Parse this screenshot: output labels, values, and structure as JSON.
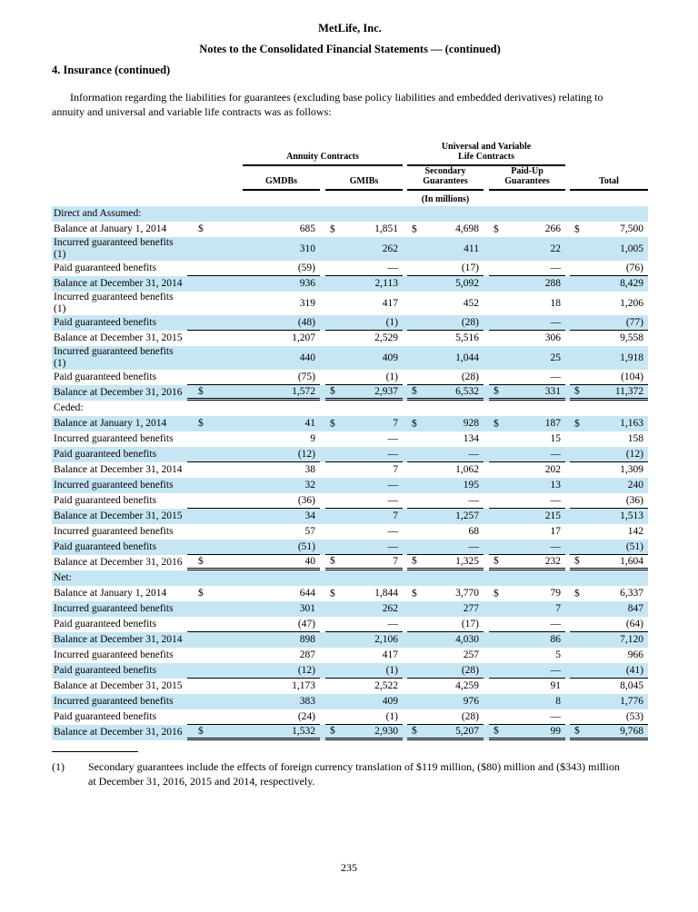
{
  "header": {
    "company": "MetLife, Inc.",
    "doc_title": "Notes to the Consolidated Financial Statements — (continued)",
    "section_heading": "4. Insurance (continued)",
    "intro_lines": [
      "Information regarding the liabilities for guarantees (excluding base policy liabilities and embedded derivatives) relating to",
      "annuity and universal and variable life contracts was as follows:"
    ]
  },
  "table": {
    "currency_symbol": "$",
    "shade_color": "#c7e6f4",
    "group_headers": {
      "annuity": "Annuity Contracts",
      "universal_variable": [
        "Universal and Variable",
        "Life Contracts"
      ]
    },
    "column_headers": {
      "gmdbs": "GMDBs",
      "gmibs": "GMIBs",
      "secondary": "Secondary Guarantees",
      "paid_up": "Paid-Up Guarantees",
      "total": "Total"
    },
    "units_note": "(In millions)",
    "sections": [
      {
        "name": "Direct and Assumed:",
        "rows": [
          {
            "label": "Balance at January 1, 2014",
            "dollar": true,
            "values": [
              "685",
              "1,851",
              "4,698",
              "266",
              "7,500"
            ]
          },
          {
            "label": "Incurred guaranteed benefits (1)",
            "values": [
              "310",
              "262",
              "411",
              "22",
              "1,005"
            ]
          },
          {
            "label": "Paid guaranteed benefits",
            "values": [
              "(59)",
              "—",
              "(17)",
              "—",
              "(76)"
            ],
            "rule": "single"
          },
          {
            "label": "Balance at December 31, 2014",
            "values": [
              "936",
              "2,113",
              "5,092",
              "288",
              "8,429"
            ]
          },
          {
            "label": "Incurred guaranteed benefits (1)",
            "values": [
              "319",
              "417",
              "452",
              "18",
              "1,206"
            ]
          },
          {
            "label": "Paid guaranteed benefits",
            "values": [
              "(48)",
              "(1)",
              "(28)",
              "—",
              "(77)"
            ],
            "rule": "single"
          },
          {
            "label": "Balance at December 31, 2015",
            "values": [
              "1,207",
              "2,529",
              "5,516",
              "306",
              "9,558"
            ]
          },
          {
            "label": "Incurred guaranteed benefits (1)",
            "values": [
              "440",
              "409",
              "1,044",
              "25",
              "1,918"
            ]
          },
          {
            "label": "Paid guaranteed benefits",
            "values": [
              "(75)",
              "(1)",
              "(28)",
              "—",
              "(104)"
            ],
            "rule": "single"
          },
          {
            "label": "Balance at December 31, 2016",
            "dollar": true,
            "values": [
              "1,572",
              "2,937",
              "6,532",
              "331",
              "11,372"
            ],
            "rule": "double"
          }
        ]
      },
      {
        "name": "Ceded:",
        "rows": [
          {
            "label": "Balance at January 1, 2014",
            "dollar": true,
            "values": [
              "41",
              "7",
              "928",
              "187",
              "1,163"
            ]
          },
          {
            "label": "Incurred guaranteed benefits",
            "values": [
              "9",
              "—",
              "134",
              "15",
              "158"
            ]
          },
          {
            "label": "Paid guaranteed benefits",
            "values": [
              "(12)",
              "—",
              "—",
              "—",
              "(12)"
            ],
            "rule": "single"
          },
          {
            "label": "Balance at December 31, 2014",
            "values": [
              "38",
              "7",
              "1,062",
              "202",
              "1,309"
            ]
          },
          {
            "label": "Incurred guaranteed benefits",
            "values": [
              "32",
              "—",
              "195",
              "13",
              "240"
            ]
          },
          {
            "label": "Paid guaranteed benefits",
            "values": [
              "(36)",
              "—",
              "—",
              "—",
              "(36)"
            ],
            "rule": "single"
          },
          {
            "label": "Balance at December 31, 2015",
            "values": [
              "34",
              "7",
              "1,257",
              "215",
              "1,513"
            ]
          },
          {
            "label": "Incurred guaranteed benefits",
            "values": [
              "57",
              "—",
              "68",
              "17",
              "142"
            ]
          },
          {
            "label": "Paid guaranteed benefits",
            "values": [
              "(51)",
              "—",
              "—",
              "—",
              "(51)"
            ],
            "rule": "single"
          },
          {
            "label": "Balance at December 31, 2016",
            "dollar": true,
            "values": [
              "40",
              "7",
              "1,325",
              "232",
              "1,604"
            ],
            "rule": "double"
          }
        ]
      },
      {
        "name": "Net:",
        "rows": [
          {
            "label": "Balance at January 1, 2014",
            "dollar": true,
            "values": [
              "644",
              "1,844",
              "3,770",
              "79",
              "6,337"
            ]
          },
          {
            "label": "Incurred guaranteed benefits",
            "values": [
              "301",
              "262",
              "277",
              "7",
              "847"
            ]
          },
          {
            "label": "Paid guaranteed benefits",
            "values": [
              "(47)",
              "—",
              "(17)",
              "—",
              "(64)"
            ],
            "rule": "single"
          },
          {
            "label": "Balance at December 31, 2014",
            "values": [
              "898",
              "2,106",
              "4,030",
              "86",
              "7,120"
            ]
          },
          {
            "label": "Incurred guaranteed benefits",
            "values": [
              "287",
              "417",
              "257",
              "5",
              "966"
            ]
          },
          {
            "label": "Paid guaranteed benefits",
            "values": [
              "(12)",
              "(1)",
              "(28)",
              "—",
              "(41)"
            ],
            "rule": "single"
          },
          {
            "label": "Balance at December 31, 2015",
            "values": [
              "1,173",
              "2,522",
              "4,259",
              "91",
              "8,045"
            ]
          },
          {
            "label": "Incurred guaranteed benefits",
            "values": [
              "383",
              "409",
              "976",
              "8",
              "1,776"
            ]
          },
          {
            "label": "Paid guaranteed benefits",
            "values": [
              "(24)",
              "(1)",
              "(28)",
              "—",
              "(53)"
            ],
            "rule": "single"
          },
          {
            "label": "Balance at December 31, 2016",
            "dollar": true,
            "values": [
              "1,532",
              "2,930",
              "5,207",
              "99",
              "9,768"
            ],
            "rule": "double"
          }
        ]
      }
    ]
  },
  "footnote": {
    "marker": "(1)",
    "lines": [
      "Secondary guarantees include the effects of foreign currency translation of $119 million, ($80) million and ($343) million",
      "at December 31, 2016, 2015 and 2014, respectively."
    ]
  },
  "page_number": "235"
}
